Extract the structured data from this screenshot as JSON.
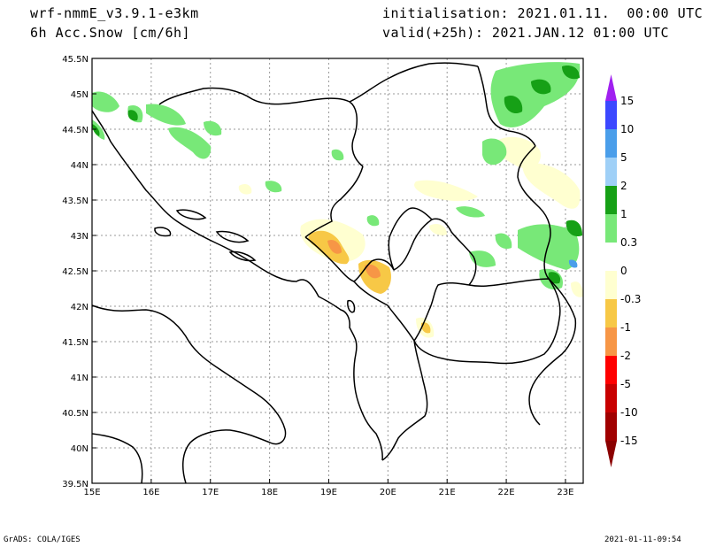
{
  "header": {
    "model": "wrf-nmmE_v3.9.1-e3km",
    "field": "6h Acc.Snow [cm/6h]",
    "init": "initialisation: 2021.01.11.  00:00 UTC",
    "valid": "valid(+25h): 2021.JAN.12 01:00 UTC"
  },
  "footer": {
    "credit": "GrADS: COLA/IGES",
    "timestamp": "2021-01-11-09:54"
  },
  "map": {
    "lon_ticks": [
      "15E",
      "16E",
      "17E",
      "18E",
      "19E",
      "20E",
      "21E",
      "22E",
      "23E"
    ],
    "lat_ticks": [
      "45.5N",
      "45N",
      "44.5N",
      "44N",
      "43.5N",
      "43N",
      "42.5N",
      "42N",
      "41.5N",
      "41N",
      "40.5N",
      "40N",
      "39.5N"
    ],
    "lon_range": [
      15,
      23.3
    ],
    "lat_range": [
      39.5,
      45.5
    ]
  },
  "colorbar": {
    "labels": [
      "15",
      "10",
      "5",
      "2",
      "1",
      "0.3",
      "0",
      "-0.3",
      "-1",
      "-2",
      "-5",
      "-10",
      "-15"
    ],
    "colors": [
      "#a020f0",
      "#3b48ff",
      "#4a9eea",
      "#9fd0f7",
      "#16a016",
      "#78e878",
      "#ffffff",
      "#ffffd0",
      "#f7c846",
      "#f79646",
      "#ff0000",
      "#c80000",
      "#a00000"
    ],
    "top_arrow_color": "#a020f0",
    "bottom_arrow_color": "#8b0000"
  }
}
